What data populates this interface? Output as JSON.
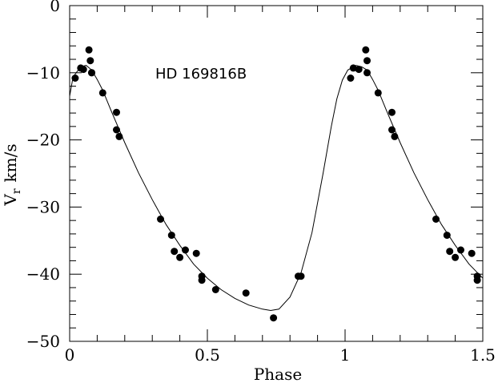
{
  "chart_data": {
    "type": "scatter",
    "title": "",
    "annotation": "HD 169816B",
    "xlabel": "Phase",
    "ylabel_main": "V",
    "ylabel_sub": "r",
    "ylabel_unit": "km/s",
    "xlim": [
      0,
      1.5
    ],
    "ylim": [
      -50,
      0
    ],
    "xticks": [
      0,
      0.5,
      1,
      1.5
    ],
    "xticklabels": [
      "0",
      "0.5",
      "1",
      "1.5"
    ],
    "yticks": [
      0,
      -10,
      -20,
      -30,
      -40,
      -50
    ],
    "yticklabels": [
      "0",
      "−10",
      "−20",
      "−30",
      "−40",
      "−50"
    ],
    "grid": false,
    "series": [
      {
        "type": "scatter",
        "marker": "filled-circle",
        "x": [
          0.02,
          0.04,
          0.05,
          0.07,
          0.075,
          0.08,
          0.08,
          0.12,
          0.17,
          0.17,
          0.18,
          0.33,
          0.37,
          0.38,
          0.4,
          0.42,
          0.46,
          0.48,
          0.48,
          0.53,
          0.64,
          0.74,
          0.83,
          0.84,
          1.02,
          1.03,
          1.05,
          1.075,
          1.08,
          1.08,
          1.12,
          1.17,
          1.17,
          1.18,
          1.33,
          1.37,
          1.38,
          1.4,
          1.42,
          1.46,
          1.48,
          1.48
        ],
        "y": [
          -10.8,
          -9.3,
          -9.5,
          -6.6,
          -8.2,
          -10.0,
          -10.0,
          -13.0,
          -15.9,
          -18.5,
          -19.5,
          -31.8,
          -34.2,
          -36.6,
          -37.5,
          -36.4,
          -36.9,
          -40.3,
          -40.9,
          -42.3,
          -42.8,
          -46.5,
          -40.3,
          -40.3,
          -10.8,
          -9.3,
          -9.5,
          -6.6,
          -8.2,
          -10.0,
          -13.0,
          -15.9,
          -18.5,
          -19.5,
          -31.8,
          -34.2,
          -36.6,
          -37.5,
          -36.4,
          -36.9,
          -40.3,
          -40.9
        ]
      },
      {
        "type": "line",
        "x": [
          0,
          0.01,
          0.02,
          0.04,
          0.06,
          0.08,
          0.1,
          0.12,
          0.15,
          0.2,
          0.25,
          0.3,
          0.35,
          0.4,
          0.45,
          0.5,
          0.55,
          0.6,
          0.65,
          0.7,
          0.73,
          0.76,
          0.8,
          0.84,
          0.88,
          0.92,
          0.95,
          0.97,
          0.99,
          1.01,
          1.04,
          1.06,
          1.08,
          1.1,
          1.12,
          1.15,
          1.2,
          1.25,
          1.3,
          1.35,
          1.4,
          1.45,
          1.5
        ],
        "y": [
          -13.5,
          -11.2,
          -10.2,
          -9.1,
          -8.9,
          -9.6,
          -11.0,
          -12.6,
          -15.6,
          -20.4,
          -24.9,
          -28.9,
          -32.6,
          -35.7,
          -38.5,
          -40.6,
          -42.3,
          -43.6,
          -44.6,
          -45.2,
          -45.4,
          -45.2,
          -43.4,
          -39.8,
          -33.8,
          -25.0,
          -18.0,
          -13.9,
          -11.1,
          -9.6,
          -8.9,
          -9.1,
          -9.6,
          -11.0,
          -12.6,
          -15.6,
          -20.4,
          -24.9,
          -28.9,
          -32.6,
          -35.7,
          -38.5,
          -40.6
        ]
      }
    ]
  }
}
